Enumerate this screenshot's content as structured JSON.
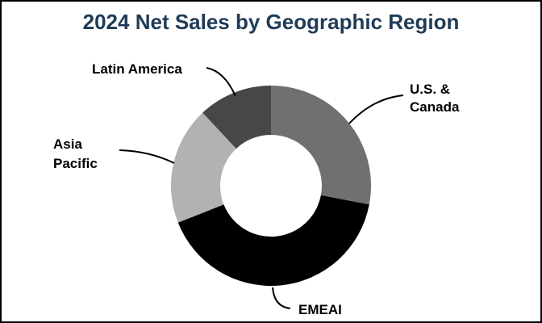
{
  "chart_data": {
    "type": "pie",
    "title": "2024 Net Sales by Geographic Region",
    "donut": true,
    "slices": [
      {
        "label": "U.S. & Canada",
        "value": 28,
        "color": "#707070"
      },
      {
        "label": "EMEAI",
        "value": 41,
        "color": "#000000"
      },
      {
        "label": "Asia Pacific",
        "value": 19,
        "color": "#b2b2b2"
      },
      {
        "label": "Latin America",
        "value": 12,
        "color": "#474747"
      }
    ],
    "legend": "none",
    "colors": {
      "title": "#1f3b57",
      "border": "#000000"
    }
  }
}
